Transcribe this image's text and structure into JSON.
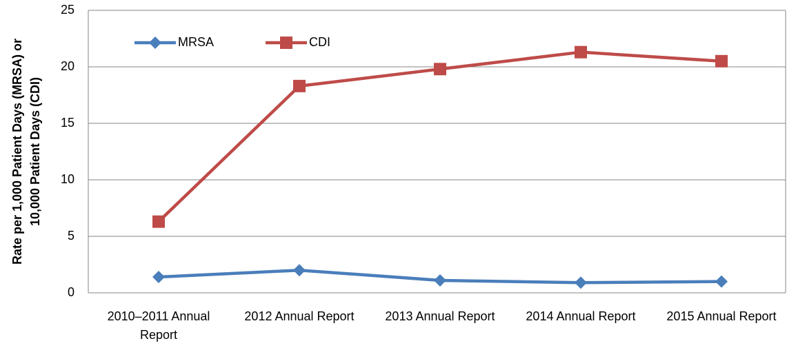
{
  "chart_data": {
    "type": "line",
    "categories": [
      "2010–2011 Annual Report",
      "2012 Annual Report",
      "2013 Annual Report",
      "2014 Annual Report",
      "2015 Annual Report"
    ],
    "series": [
      {
        "name": "MRSA",
        "color": "#4a7ebb",
        "marker": "diamond",
        "values": [
          1.4,
          2.0,
          1.1,
          0.9,
          1.0
        ]
      },
      {
        "name": "CDI",
        "color": "#be4b48",
        "marker": "square",
        "values": [
          6.3,
          18.3,
          19.8,
          21.3,
          20.5
        ]
      }
    ],
    "ylabel": [
      "Rate per 1,000 Patient Days (MRSA) or",
      "10,000 Patient Days (CDI)"
    ],
    "ylim": [
      0,
      25
    ],
    "yticks": [
      0,
      5,
      10,
      15,
      20,
      25
    ],
    "grid": true,
    "legend": "top-left"
  }
}
